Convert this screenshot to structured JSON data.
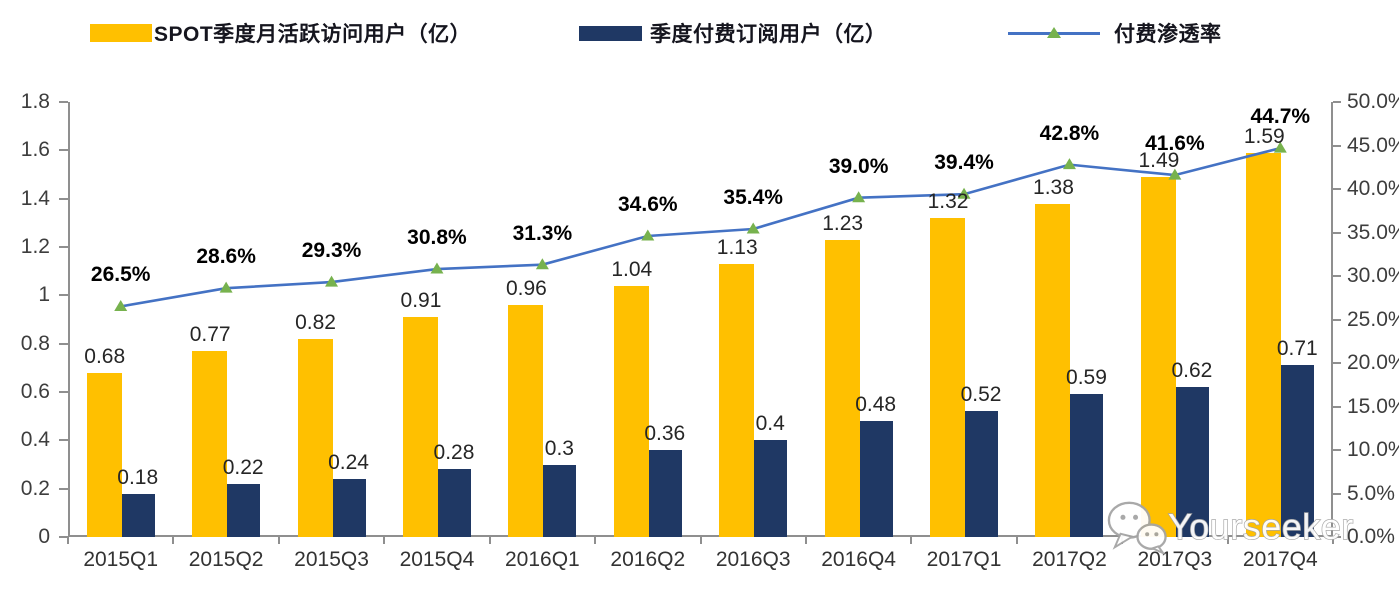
{
  "legend": [
    {
      "label": "SPOT季度月活跃访问用户（亿）",
      "swatch": "bar",
      "color": "#FFC000"
    },
    {
      "label": "季度付费订阅用户（亿）",
      "swatch": "bar",
      "color": "#1F3864"
    },
    {
      "label": "付费渗透率",
      "swatch": "line",
      "color": "#4472C4",
      "marker_color": "#77B24E"
    }
  ],
  "chart_data": {
    "type": "bar+line combo",
    "categories": [
      "2015Q1",
      "2015Q2",
      "2015Q3",
      "2015Q4",
      "2016Q1",
      "2016Q2",
      "2016Q3",
      "2016Q4",
      "2017Q1",
      "2017Q2",
      "2017Q3",
      "2017Q4"
    ],
    "series": [
      {
        "name": "SPOT季度月活跃访问用户（亿）",
        "type": "bar",
        "axis": "left",
        "color": "#FFC000",
        "values": [
          0.68,
          0.77,
          0.82,
          0.91,
          0.96,
          1.04,
          1.13,
          1.23,
          1.32,
          1.38,
          1.49,
          1.59
        ],
        "labels": [
          "0.68",
          "0.77",
          "0.82",
          "0.91",
          "0.96",
          "1.04",
          "1.13",
          "1.23",
          "1.32",
          "1.38",
          "1.49",
          "1.59"
        ]
      },
      {
        "name": "季度付费订阅用户（亿）",
        "type": "bar",
        "axis": "left",
        "color": "#1F3864",
        "values": [
          0.18,
          0.22,
          0.24,
          0.28,
          0.3,
          0.36,
          0.4,
          0.48,
          0.52,
          0.59,
          0.62,
          0.71
        ],
        "labels": [
          "0.18",
          "0.22",
          "0.24",
          "0.28",
          "0.3",
          "0.36",
          "0.4",
          "0.48",
          "0.52",
          "0.59",
          "0.62",
          "0.71"
        ]
      },
      {
        "name": "付费渗透率",
        "type": "line",
        "axis": "right",
        "color": "#4472C4",
        "marker": "triangle",
        "marker_color": "#77B24E",
        "values": [
          26.5,
          28.6,
          29.3,
          30.8,
          31.3,
          34.6,
          35.4,
          39.0,
          39.4,
          42.8,
          41.6,
          44.7
        ],
        "labels": [
          "26.5%",
          "28.6%",
          "29.3%",
          "30.8%",
          "31.3%",
          "34.6%",
          "35.4%",
          "39.0%",
          "39.4%",
          "42.8%",
          "41.6%",
          "44.7%"
        ]
      }
    ],
    "left_axis": {
      "min": 0,
      "max": 1.8,
      "step": 0.2,
      "ticks": [
        "1.8",
        "1.6",
        "1.4",
        "1.2",
        "1",
        "0.8",
        "0.6",
        "0.4",
        "0.2",
        "0"
      ]
    },
    "right_axis": {
      "min": 0,
      "max": 50,
      "step": 5,
      "ticks": [
        "50.0%",
        "45.0%",
        "40.0%",
        "35.0%",
        "30.0%",
        "25.0%",
        "20.0%",
        "15.0%",
        "10.0%",
        "5.0%",
        "0.0%"
      ]
    },
    "grid": false,
    "legend_position": "top"
  },
  "watermark": {
    "text": "Yourseeker",
    "icon": "wechat-chat-bubbles"
  }
}
